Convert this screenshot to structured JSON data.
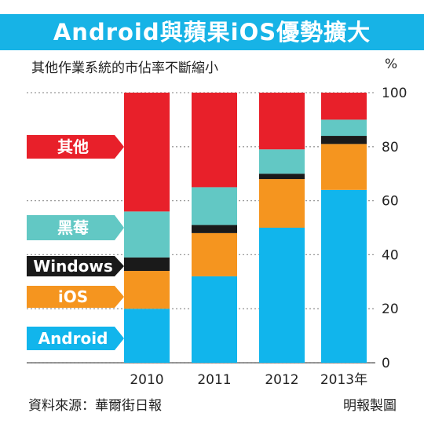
{
  "header": {
    "title": "Android與蘋果iOS優勢擴大",
    "subtitle": "其他作業系統的市佔率不斷縮小",
    "unit": "%"
  },
  "footer": {
    "source": "資料來源：華爾街日報",
    "credit": "明報製圖"
  },
  "colors": {
    "title_bar": "#17b3e6",
    "Android": "#11b5ec",
    "iOS": "#f5951f",
    "Windows": "#1a1a1a",
    "黑莓": "#62c8c4",
    "其他": "#e8202a"
  },
  "chart_data": {
    "type": "bar",
    "stacked": true,
    "categories": [
      "2010",
      "2011",
      "2012",
      "2013年"
    ],
    "series": [
      {
        "name": "Android",
        "values": [
          20,
          32,
          50,
          64
        ]
      },
      {
        "name": "iOS",
        "values": [
          14,
          16,
          18,
          17
        ]
      },
      {
        "name": "Windows",
        "values": [
          5,
          3,
          2,
          3
        ]
      },
      {
        "name": "黑莓",
        "values": [
          17,
          14,
          9,
          6
        ]
      },
      {
        "name": "其他",
        "values": [
          44,
          35,
          21,
          10
        ]
      }
    ],
    "legend_order": [
      "其他",
      "黑莓",
      "Windows",
      "iOS",
      "Android"
    ],
    "ylim": [
      0,
      100
    ],
    "yticks": [
      0,
      20,
      40,
      60,
      80,
      100
    ],
    "gridlines": "dotted",
    "legend_placement": "left"
  }
}
